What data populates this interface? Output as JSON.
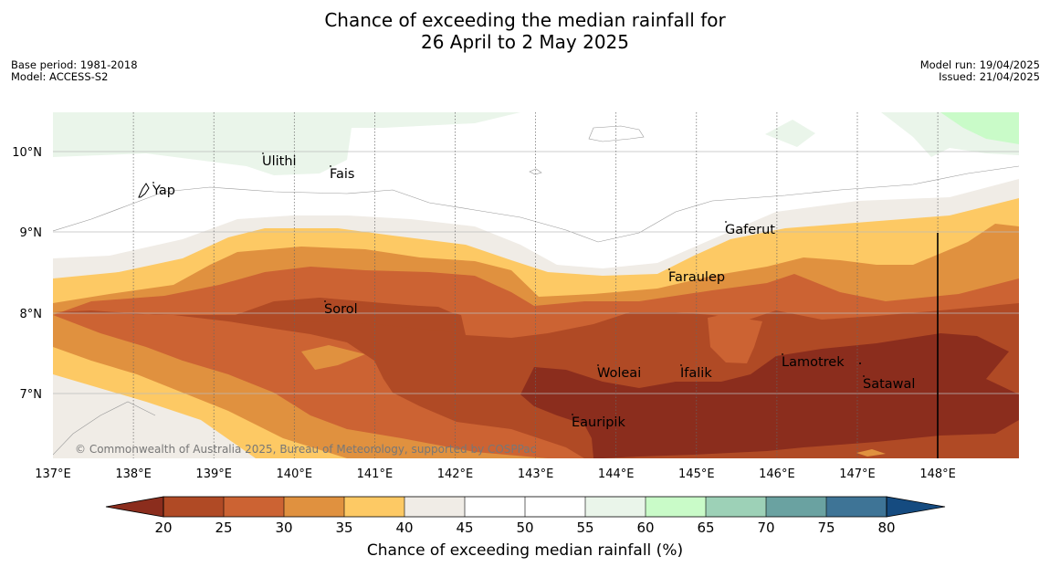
{
  "title_line1": "Chance of exceeding the median rainfall for",
  "title_line2": "26 April to 2 May 2025",
  "base_period": "Base period: 1981-2018",
  "model": "Model: ACCESS-S2",
  "model_run": "Model run: 19/04/2025",
  "issued": "Issued: 21/04/2025",
  "copyright": "© Commonwealth of Australia 2025, Bureau of Meteorology, supported by COSPPac",
  "places": [
    "Ulithi",
    "Fais",
    "Yap",
    "Gaferut",
    "Faraulep",
    "Sorol",
    "Woleai",
    "Ifalik",
    "Lamotrek",
    "Satawal",
    "Eauripik"
  ],
  "lon_labels": [
    "137°E",
    "138°E",
    "139°E",
    "140°E",
    "141°E",
    "142°E",
    "143°E",
    "144°E",
    "145°E",
    "146°E",
    "147°E",
    "148°E"
  ],
  "lat_labels": [
    "10°N",
    "9°N",
    "8°N",
    "7°N"
  ],
  "colorbar": {
    "ticks": [
      "20",
      "25",
      "30",
      "35",
      "40",
      "45",
      "50",
      "55",
      "60",
      "65",
      "70",
      "75",
      "80"
    ],
    "colors": [
      "#8b2d1d",
      "#b04a25",
      "#cc6333",
      "#e0913f",
      "#fdc964",
      "#f0ece6",
      "#ffffff",
      "#ffffff",
      "#eaf5ea",
      "#c9fbc8",
      "#9dd1b7",
      "#6aa2a1",
      "#3e7496",
      "#154b80"
    ],
    "label": "Chance of exceeding median rainfall (%)"
  }
}
